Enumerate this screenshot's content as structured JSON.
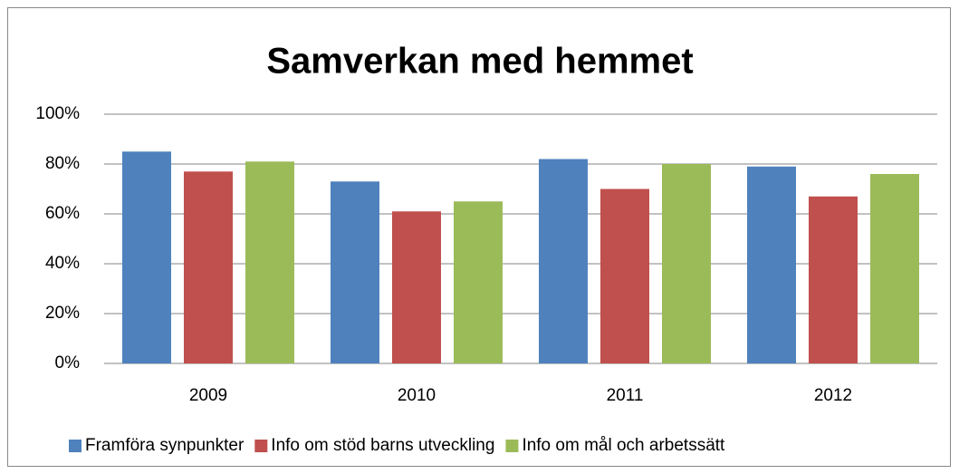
{
  "chart_data": {
    "type": "bar",
    "title": "Samverkan med hemmet",
    "categories": [
      "2009",
      "2010",
      "2011",
      "2012"
    ],
    "series": [
      {
        "name": "Framföra synpunkter",
        "color": "#4f81bd",
        "values": [
          85,
          73,
          82,
          79
        ]
      },
      {
        "name": "Info om stöd barns utveckling",
        "color": "#c0504d",
        "values": [
          77,
          61,
          70,
          67
        ]
      },
      {
        "name": "Info om mål och arbetssätt",
        "color": "#9bbb59",
        "values": [
          81,
          65,
          80,
          76
        ]
      }
    ],
    "ylim": [
      0,
      100
    ],
    "yticks": [
      {
        "value": 0,
        "label": "0%"
      },
      {
        "value": 20,
        "label": "20%"
      },
      {
        "value": 40,
        "label": "40%"
      },
      {
        "value": 60,
        "label": "60%"
      },
      {
        "value": 80,
        "label": "80%"
      },
      {
        "value": 100,
        "label": "100%"
      }
    ],
    "grid": true,
    "legend": "bottom"
  }
}
